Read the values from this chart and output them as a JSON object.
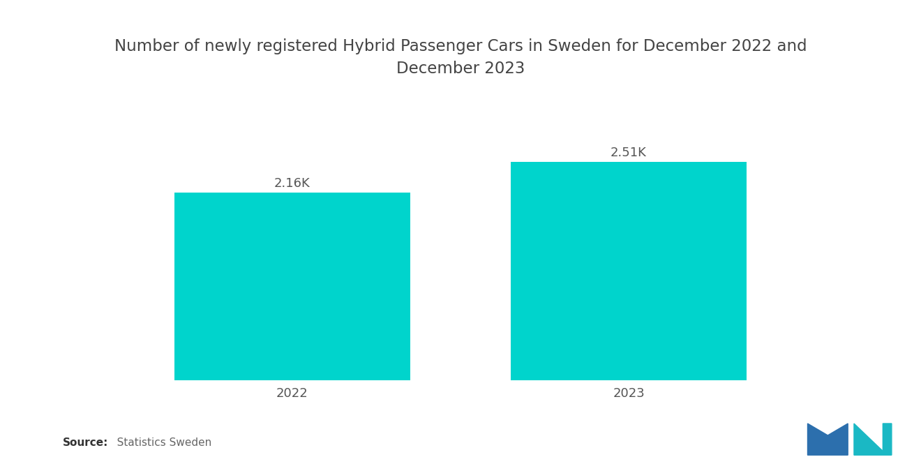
{
  "title": "Number of newly registered Hybrid Passenger Cars in Sweden for December 2022 and\nDecember 2023",
  "categories": [
    "2022",
    "2023"
  ],
  "values": [
    2160,
    2510
  ],
  "labels": [
    "2.16K",
    "2.51K"
  ],
  "bar_color": "#00D4CC",
  "background_color": "#ffffff",
  "title_fontsize": 16.5,
  "label_fontsize": 13,
  "tick_fontsize": 13,
  "source_bold": "Source:",
  "source_rest": "   Statistics Sweden",
  "ylim": [
    0,
    3200
  ],
  "bar_width": 0.7,
  "x_positions": [
    0,
    1
  ]
}
